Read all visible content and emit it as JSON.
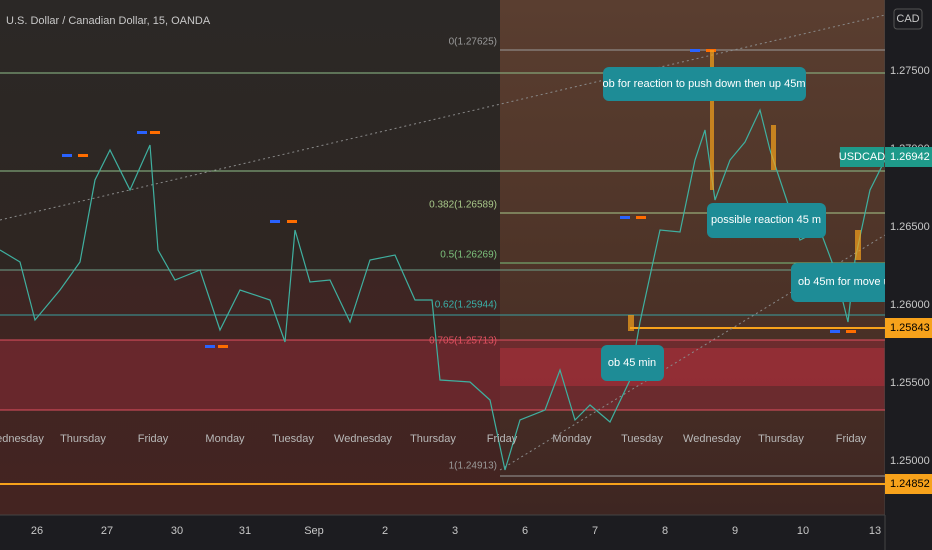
{
  "header": {
    "title": "U.S. Dollar / Canadian Dollar, 15, OANDA"
  },
  "price_axis": {
    "currency": "CAD",
    "labels": [
      "1.27500",
      "1.27000",
      "1.26500",
      "1.26000",
      "1.25500",
      "1.25000"
    ],
    "symbol": "USDCAD",
    "last_price": "1.26942",
    "level_tags": [
      "1.25843",
      "1.24852"
    ]
  },
  "fib_levels": [
    "0(1.27625)",
    "0.382(1.26589)",
    "0.5(1.26269)",
    "0.62(1.25944)",
    "0.705(1.25713)",
    "1(1.24913)"
  ],
  "annotations": [
    "ob for reaction to push down then up 45m",
    "possible reaction 45 m",
    "ob 45m for move u",
    "ob 45 min"
  ],
  "time_axis": {
    "days": [
      "ednesday",
      "Thursday",
      "Friday",
      "Monday",
      "Tuesday",
      "Wednesday",
      "Thursday",
      "Friday",
      "Monday",
      "Tuesday",
      "Wednesday",
      "Thursday",
      "Friday"
    ],
    "dates": [
      "26",
      "27",
      "30",
      "31",
      "Sep",
      "2",
      "3",
      "6",
      "7",
      "8",
      "9",
      "10",
      "13"
    ]
  }
}
